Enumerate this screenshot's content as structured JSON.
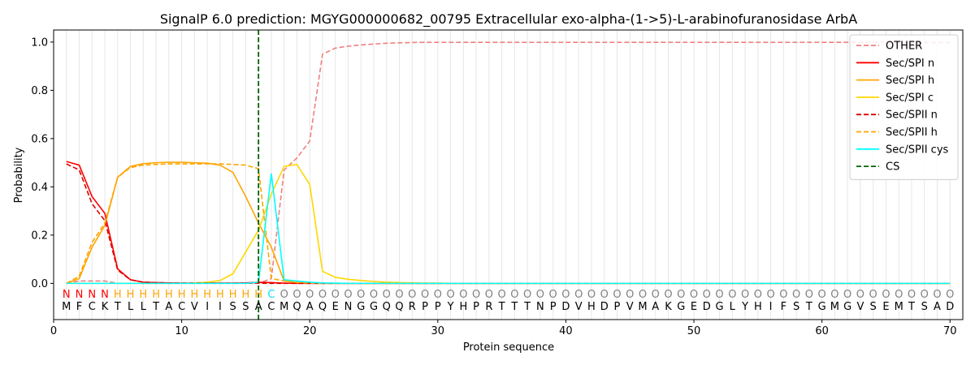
{
  "chart_data": {
    "type": "line",
    "title": "SignalP 6.0 prediction: MGYG000000682_00795 Extracellular exo-alpha-(1->5)-L-arabinofuranosidase ArbA",
    "xlabel": "Protein sequence",
    "ylabel": "Probability",
    "xlim": [
      0,
      71
    ],
    "ylim": [
      -0.15,
      1.05
    ],
    "xticks": [
      0,
      10,
      20,
      30,
      40,
      50,
      60,
      70
    ],
    "yticks": [
      0.0,
      0.2,
      0.4,
      0.6,
      0.8,
      1.0
    ],
    "tick_labels_x": [
      "0",
      "10",
      "20",
      "30",
      "40",
      "50",
      "60",
      "70"
    ],
    "tick_labels_y": [
      "0.0",
      "0.2",
      "0.4",
      "0.6",
      "0.8",
      "1.0"
    ],
    "legend_position": "top-right",
    "grid": "vertical lines at each residue position",
    "cleavage_site": 16,
    "sequence": [
      "M",
      "F",
      "C",
      "K",
      "T",
      "L",
      "L",
      "T",
      "A",
      "C",
      "V",
      "I",
      "I",
      "S",
      "S",
      "A",
      "C",
      "M",
      "Q",
      "A",
      "Q",
      "E",
      "N",
      "G",
      "G",
      "Q",
      "Q",
      "R",
      "P",
      "P",
      "Y",
      "H",
      "P",
      "R",
      "T",
      "T",
      "T",
      "N",
      "P",
      "D",
      "V",
      "H",
      "D",
      "P",
      "V",
      "M",
      "A",
      "K",
      "G",
      "E",
      "D",
      "G",
      "L",
      "Y",
      "H",
      "I",
      "F",
      "S",
      "T",
      "G",
      "M",
      "G",
      "V",
      "S",
      "E",
      "M",
      "T",
      "S",
      "A",
      "D"
    ],
    "region_labels": [
      "N",
      "N",
      "N",
      "N",
      "H",
      "H",
      "H",
      "H",
      "H",
      "H",
      "H",
      "H",
      "H",
      "H",
      "H",
      "H",
      "C",
      "O",
      "O",
      "O",
      "O",
      "O",
      "O",
      "O",
      "O",
      "O",
      "O",
      "O",
      "O",
      "O",
      "O",
      "O",
      "O",
      "O",
      "O",
      "O",
      "O",
      "O",
      "O",
      "O",
      "O",
      "O",
      "O",
      "O",
      "O",
      "O",
      "O",
      "O",
      "O",
      "O",
      "O",
      "O",
      "O",
      "O",
      "O",
      "O",
      "O",
      "O",
      "O",
      "O",
      "O",
      "O",
      "O",
      "O",
      "O",
      "O",
      "O",
      "O",
      "O",
      "O"
    ],
    "region_colors": {
      "N": "#ff0000",
      "H": "#ffa500",
      "C": "#00e5ee",
      "O": "#808080"
    },
    "series": [
      {
        "name": "OTHER",
        "color": "#f08080",
        "dash": "dashed",
        "values": [
          0.0,
          0.01,
          0.01,
          0.01,
          0.0,
          0.0,
          0.0,
          0.0,
          0.0,
          0.0,
          0.0,
          0.0,
          0.0,
          0.0,
          0.0,
          0.0,
          0.02,
          0.47,
          0.52,
          0.59,
          0.95,
          0.975,
          0.983,
          0.988,
          0.992,
          0.995,
          0.997,
          0.998,
          0.999,
          0.999,
          0.999,
          0.999,
          0.999,
          0.999,
          0.999,
          0.999,
          0.999,
          0.999,
          0.999,
          0.999,
          0.999,
          0.999,
          0.999,
          0.999,
          0.999,
          0.999,
          0.999,
          0.999,
          0.999,
          0.999,
          0.999,
          0.999,
          0.999,
          0.999,
          0.999,
          0.999,
          0.999,
          0.999,
          0.999,
          0.999,
          0.999,
          0.999,
          0.999,
          0.999,
          0.999,
          0.998,
          0.998,
          0.998,
          0.998,
          0.998
        ]
      },
      {
        "name": "Sec/SPI n",
        "color": "#ff0000",
        "dash": "solid",
        "values": [
          0.505,
          0.49,
          0.36,
          0.29,
          0.06,
          0.015,
          0.005,
          0.003,
          0.002,
          0.001,
          0.001,
          0.001,
          0.001,
          0.001,
          0.002,
          0.005,
          0.003,
          0.001,
          0.0,
          0.0,
          0.0,
          0.0,
          0.0,
          0.0,
          0.0,
          0.0,
          0.0,
          0.0,
          0.0,
          0.0,
          0.0,
          0.0,
          0.0,
          0.0,
          0.0,
          0.0,
          0.0,
          0.0,
          0.0,
          0.0,
          0.0,
          0.0,
          0.0,
          0.0,
          0.0,
          0.0,
          0.0,
          0.0,
          0.0,
          0.0,
          0.0,
          0.0,
          0.0,
          0.0,
          0.0,
          0.0,
          0.0,
          0.0,
          0.0,
          0.0,
          0.0,
          0.0,
          0.0,
          0.0,
          0.0,
          0.0,
          0.0,
          0.0,
          0.0,
          0.0
        ]
      },
      {
        "name": "Sec/SPI h",
        "color": "#ffa500",
        "dash": "solid",
        "values": [
          0.0,
          0.02,
          0.15,
          0.24,
          0.44,
          0.485,
          0.496,
          0.5,
          0.502,
          0.502,
          0.5,
          0.498,
          0.49,
          0.46,
          0.36,
          0.25,
          0.15,
          0.01,
          0.003,
          0.001,
          0.0,
          0.0,
          0.0,
          0.0,
          0.0,
          0.0,
          0.0,
          0.0,
          0.0,
          0.0,
          0.0,
          0.0,
          0.0,
          0.0,
          0.0,
          0.0,
          0.0,
          0.0,
          0.0,
          0.0,
          0.0,
          0.0,
          0.0,
          0.0,
          0.0,
          0.0,
          0.0,
          0.0,
          0.0,
          0.0,
          0.0,
          0.0,
          0.0,
          0.0,
          0.0,
          0.0,
          0.0,
          0.0,
          0.0,
          0.0,
          0.0,
          0.0,
          0.0,
          0.0,
          0.0,
          0.0,
          0.0,
          0.0,
          0.0,
          0.0
        ]
      },
      {
        "name": "Sec/SPI c",
        "color": "#ffd700",
        "dash": "solid",
        "values": [
          0.0,
          0.0,
          0.0,
          0.0,
          0.0,
          0.0,
          0.0,
          0.0,
          0.0,
          0.0,
          0.002,
          0.005,
          0.012,
          0.04,
          0.13,
          0.22,
          0.37,
          0.485,
          0.493,
          0.41,
          0.05,
          0.025,
          0.017,
          0.012,
          0.008,
          0.005,
          0.003,
          0.002,
          0.001,
          0.001,
          0.0,
          0.0,
          0.0,
          0.0,
          0.0,
          0.0,
          0.0,
          0.0,
          0.0,
          0.0,
          0.0,
          0.0,
          0.0,
          0.0,
          0.0,
          0.0,
          0.0,
          0.0,
          0.0,
          0.0,
          0.0,
          0.0,
          0.0,
          0.0,
          0.0,
          0.0,
          0.0,
          0.0,
          0.0,
          0.0,
          0.0,
          0.0,
          0.0,
          0.0,
          0.0,
          0.0,
          0.0,
          0.0,
          0.0,
          0.0
        ]
      },
      {
        "name": "Sec/SPII n",
        "color": "#dd0000",
        "dash": "dashed",
        "values": [
          0.495,
          0.47,
          0.33,
          0.26,
          0.055,
          0.015,
          0.005,
          0.003,
          0.002,
          0.001,
          0.001,
          0.001,
          0.001,
          0.001,
          0.001,
          0.001,
          0.0,
          0.0,
          0.0,
          0.0,
          0.0,
          0.0,
          0.0,
          0.0,
          0.0,
          0.0,
          0.0,
          0.0,
          0.0,
          0.0,
          0.0,
          0.0,
          0.0,
          0.0,
          0.0,
          0.0,
          0.0,
          0.0,
          0.0,
          0.0,
          0.0,
          0.0,
          0.0,
          0.0,
          0.0,
          0.0,
          0.0,
          0.0,
          0.0,
          0.0,
          0.0,
          0.0,
          0.0,
          0.0,
          0.0,
          0.0,
          0.0,
          0.0,
          0.0,
          0.0,
          0.0,
          0.0,
          0.0,
          0.0,
          0.0,
          0.0,
          0.0,
          0.0,
          0.0,
          0.0
        ]
      },
      {
        "name": "Sec/SPII h",
        "color": "#ffa500",
        "dash": "dashed",
        "values": [
          0.0,
          0.03,
          0.17,
          0.25,
          0.44,
          0.48,
          0.49,
          0.493,
          0.495,
          0.495,
          0.495,
          0.495,
          0.495,
          0.493,
          0.49,
          0.475,
          0.02,
          0.01,
          0.005,
          0.002,
          0.001,
          0.0,
          0.0,
          0.0,
          0.0,
          0.0,
          0.0,
          0.0,
          0.0,
          0.0,
          0.0,
          0.0,
          0.0,
          0.0,
          0.0,
          0.0,
          0.0,
          0.0,
          0.0,
          0.0,
          0.0,
          0.0,
          0.0,
          0.0,
          0.0,
          0.0,
          0.0,
          0.0,
          0.0,
          0.0,
          0.0,
          0.0,
          0.0,
          0.0,
          0.0,
          0.0,
          0.0,
          0.0,
          0.0,
          0.0,
          0.0,
          0.0,
          0.0,
          0.0,
          0.0,
          0.0,
          0.0,
          0.0,
          0.0,
          0.0
        ]
      },
      {
        "name": "Sec/SPII cys",
        "color": "#00ffff",
        "dash": "solid",
        "values": [
          0.0,
          0.0,
          0.0,
          0.0,
          0.0,
          0.0,
          0.0,
          0.0,
          0.0,
          0.0,
          0.0,
          0.0,
          0.0,
          0.0,
          0.0,
          0.005,
          0.455,
          0.015,
          0.01,
          0.005,
          0.002,
          0.001,
          0.0,
          0.0,
          0.0,
          0.0,
          0.0,
          0.0,
          0.0,
          0.0,
          0.0,
          0.0,
          0.0,
          0.0,
          0.0,
          0.0,
          0.0,
          0.0,
          0.0,
          0.0,
          0.0,
          0.0,
          0.0,
          0.0,
          0.0,
          0.0,
          0.0,
          0.0,
          0.0,
          0.0,
          0.0,
          0.0,
          0.0,
          0.0,
          0.0,
          0.0,
          0.0,
          0.0,
          0.0,
          0.0,
          0.0,
          0.0,
          0.0,
          0.0,
          0.0,
          0.0,
          0.0,
          0.0,
          0.0,
          0.0
        ]
      }
    ],
    "cs_legend": {
      "name": "CS",
      "color": "#006400",
      "dash": "dashed"
    }
  }
}
